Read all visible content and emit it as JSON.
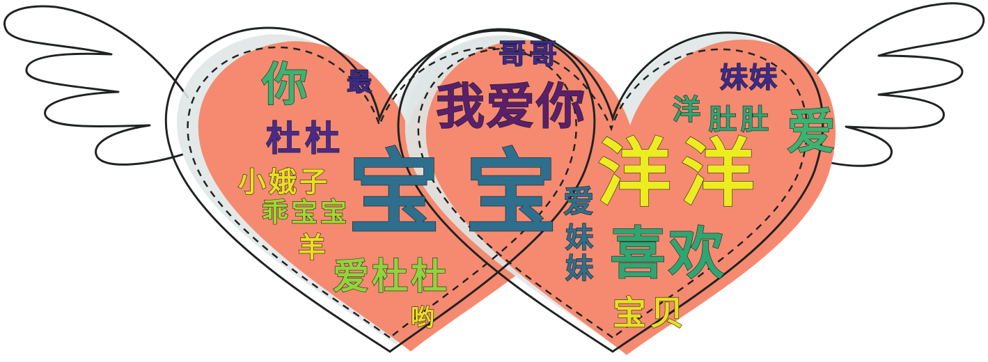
{
  "palette": {
    "heart_fill": "#f58a71",
    "heart_shadow": "#dfe7e6",
    "outline": "#1f2321",
    "background": "#ffffff"
  },
  "words": {
    "ni_left": {
      "text": "你",
      "color": "#3cb371"
    },
    "zui": {
      "text": "最",
      "color": "#3b2a8c"
    },
    "dudu_1": {
      "text": "杜杜",
      "color": "#4b2a8c"
    },
    "xiaoezi": {
      "text": "小娥子",
      "color": "#e8e020"
    },
    "guaibaobao": {
      "text": "乖宝宝",
      "color": "#a0d830"
    },
    "yang_small": {
      "text": "羊",
      "color": "#e8e020"
    },
    "bao_big_left": {
      "text": "宝",
      "color": "#2e6f8e"
    },
    "aidudu": {
      "text": "爱杜杜",
      "color": "#8fd43c"
    },
    "o": {
      "text": "哟",
      "color": "#e8e020"
    },
    "gege": {
      "text": "哥哥",
      "color": "#3b2a8c"
    },
    "woaini": {
      "text": "我爱你",
      "color": "#5a1f6a"
    },
    "bao_big_right": {
      "text": "宝",
      "color": "#2e6f8e"
    },
    "meimei": {
      "text": "妹妹",
      "color": "#3b2a8c"
    },
    "yang_green": {
      "text": "洋",
      "color": "#2fa672"
    },
    "duzi": {
      "text": "肚肚",
      "color": "#2fa672"
    },
    "ai_right": {
      "text": "爱",
      "color": "#3cb371"
    },
    "yangyang": {
      "text": "洋洋",
      "color": "#ecec20"
    },
    "ai_vertical": {
      "text": "爱",
      "color": "#2e6f8e"
    },
    "meimei_vertical": {
      "text": "妹妹",
      "color": "#2e6f8e"
    },
    "xihuan": {
      "text": "喜欢",
      "color": "#2fa672"
    },
    "baobei": {
      "text": "宝贝",
      "color": "#e8e020"
    }
  },
  "icons": {
    "left_wing": "wing-icon",
    "right_wing": "wing-icon",
    "left_heart": "heart-icon",
    "right_heart": "heart-icon"
  }
}
